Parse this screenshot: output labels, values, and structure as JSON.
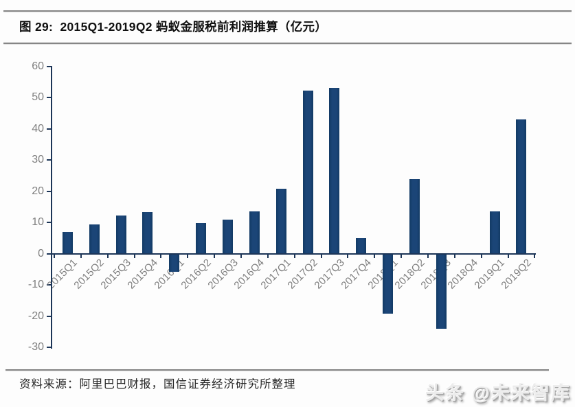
{
  "header": {
    "title": "图 29:  2015Q1-2019Q2 蚂蚁金服税前利润推算（亿元）"
  },
  "chart_data": {
    "type": "bar",
    "title": "2015Q1-2019Q2 蚂蚁金服税前利润推算（亿元）",
    "unit": "亿元",
    "categories": [
      "2015Q1",
      "2015Q2",
      "2015Q3",
      "2015Q4",
      "2016Q1",
      "2016Q2",
      "2016Q3",
      "2016Q4",
      "2017Q1",
      "2017Q2",
      "2017Q3",
      "2017Q4",
      "2018Q1",
      "2018Q2",
      "2018Q3",
      "2018Q4",
      "2019Q1",
      "2019Q2"
    ],
    "values": [
      7.0,
      9.5,
      12.2,
      13.3,
      -5.8,
      9.8,
      11.0,
      13.5,
      20.8,
      52.3,
      53.2,
      5.1,
      -19.3,
      24.0,
      -24.0,
      0,
      13.5,
      43.0
    ],
    "ylim": [
      -30,
      60
    ],
    "yticks": [
      60,
      50,
      40,
      30,
      20,
      10,
      0,
      -10,
      -20,
      -30
    ],
    "xlabel": "",
    "ylabel": "",
    "grid": false,
    "legend": false,
    "bar_color": "#1b4577",
    "axis_color": "#1c3557",
    "tick_label_color": "#7f7f7f"
  },
  "footer": {
    "source": "资料来源：阿里巴巴财报，国信证券经济研究所整理"
  },
  "watermark": {
    "text": "头条 @未来智库"
  }
}
